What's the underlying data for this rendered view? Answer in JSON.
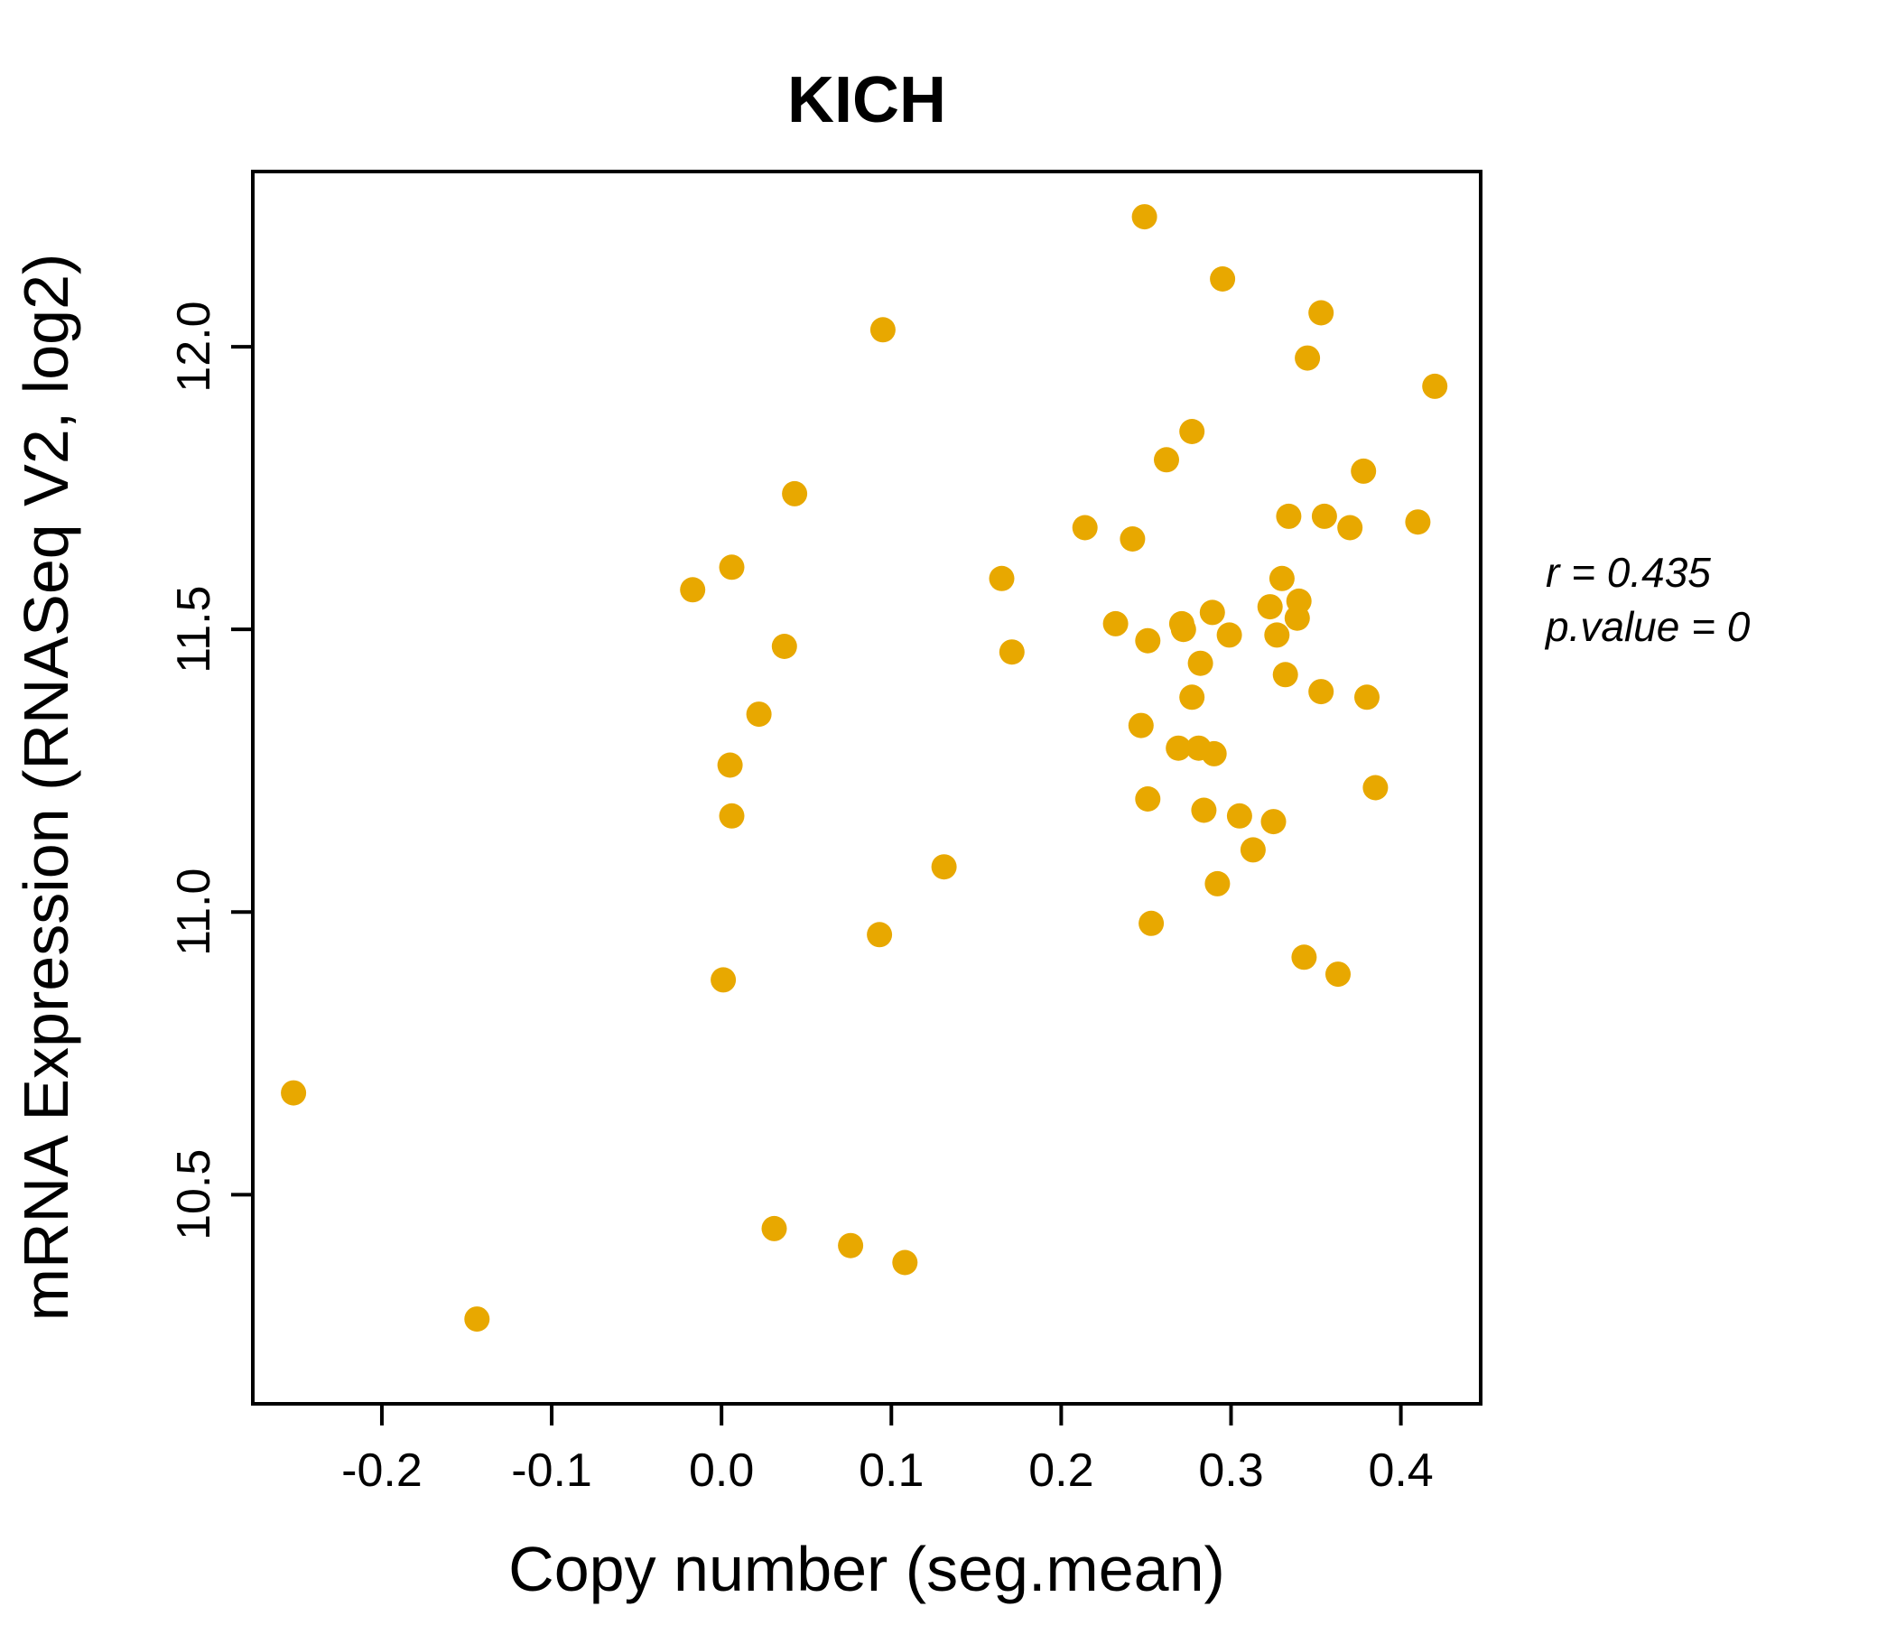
{
  "title": "KICH",
  "annotation": {
    "line1": "r = 0.435",
    "line2": "p.value = 0"
  },
  "colors": {
    "accent": "#E8A800",
    "point": "#E8A800",
    "axis": "#000000",
    "background": "#FFFFFF"
  },
  "chart_data": {
    "type": "scatter",
    "title": "KICH",
    "xlabel": "Copy number (seg.mean)",
    "ylabel": "mRNA Expression (RNASeq V2, log2)",
    "xlim": [
      -0.276,
      0.447
    ],
    "ylim": [
      10.13,
      12.31
    ],
    "xticks": [
      -0.2,
      -0.1,
      0.0,
      0.1,
      0.2,
      0.3,
      0.4
    ],
    "xtick_labels": [
      "-0.2",
      "-0.1",
      "0.0",
      "0.1",
      "0.2",
      "0.3",
      "0.4"
    ],
    "yticks": [
      10.5,
      11.0,
      11.5,
      12.0
    ],
    "ytick_labels": [
      "10.5",
      "11.0",
      "11.5",
      "12.0"
    ],
    "grid": false,
    "legend": "none",
    "point_color": "#E8A800",
    "stats": {
      "r": 0.435,
      "p_value": 0
    },
    "points": [
      [
        -0.252,
        10.68
      ],
      [
        -0.144,
        10.28
      ],
      [
        -0.017,
        11.57
      ],
      [
        0.001,
        10.88
      ],
      [
        0.005,
        11.26
      ],
      [
        0.006,
        11.17
      ],
      [
        0.006,
        11.61
      ],
      [
        0.022,
        11.35
      ],
      [
        0.031,
        10.44
      ],
      [
        0.037,
        11.47
      ],
      [
        0.043,
        11.74
      ],
      [
        0.076,
        10.41
      ],
      [
        0.093,
        10.96
      ],
      [
        0.095,
        12.03
      ],
      [
        0.108,
        10.38
      ],
      [
        0.131,
        11.08
      ],
      [
        0.165,
        11.59
      ],
      [
        0.171,
        11.46
      ],
      [
        0.214,
        11.68
      ],
      [
        0.232,
        11.51
      ],
      [
        0.242,
        11.66
      ],
      [
        0.247,
        11.33
      ],
      [
        0.249,
        12.23
      ],
      [
        0.251,
        11.48
      ],
      [
        0.251,
        11.2
      ],
      [
        0.253,
        10.98
      ],
      [
        0.262,
        11.8
      ],
      [
        0.269,
        11.29
      ],
      [
        0.271,
        11.51
      ],
      [
        0.272,
        11.5
      ],
      [
        0.277,
        11.85
      ],
      [
        0.277,
        11.38
      ],
      [
        0.281,
        11.29
      ],
      [
        0.282,
        11.44
      ],
      [
        0.284,
        11.18
      ],
      [
        0.289,
        11.53
      ],
      [
        0.29,
        11.28
      ],
      [
        0.292,
        11.05
      ],
      [
        0.295,
        12.12
      ],
      [
        0.299,
        11.49
      ],
      [
        0.305,
        11.17
      ],
      [
        0.313,
        11.11
      ],
      [
        0.323,
        11.54
      ],
      [
        0.325,
        11.16
      ],
      [
        0.327,
        11.49
      ],
      [
        0.33,
        11.59
      ],
      [
        0.332,
        11.42
      ],
      [
        0.334,
        11.7
      ],
      [
        0.339,
        11.52
      ],
      [
        0.34,
        11.55
      ],
      [
        0.343,
        10.92
      ],
      [
        0.345,
        11.98
      ],
      [
        0.353,
        12.06
      ],
      [
        0.353,
        11.39
      ],
      [
        0.355,
        11.7
      ],
      [
        0.363,
        10.89
      ],
      [
        0.37,
        11.68
      ],
      [
        0.378,
        11.78
      ],
      [
        0.38,
        11.38
      ],
      [
        0.385,
        11.22
      ],
      [
        0.41,
        11.69
      ],
      [
        0.42,
        11.93
      ]
    ]
  }
}
